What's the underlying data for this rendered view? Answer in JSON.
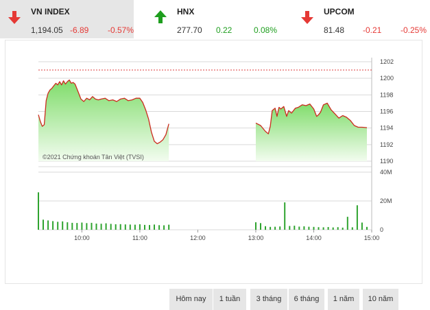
{
  "indices": [
    {
      "name": "VN INDEX",
      "value": "1,194.05",
      "change": "-6.89",
      "percent": "-0.57%",
      "direction": "down"
    },
    {
      "name": "HNX",
      "value": "277.70",
      "change": "0.22",
      "percent": "0.08%",
      "direction": "up"
    },
    {
      "name": "UPCOM",
      "value": "81.48",
      "change": "-0.21",
      "percent": "-0.25%",
      "direction": "down"
    }
  ],
  "colors": {
    "down": "#e53935",
    "up": "#1e9e1e",
    "line": "#cc2a1e",
    "reference": "#e05050",
    "fill_top": "#7fdc6a",
    "fill_bottom": "#f2fcef",
    "volume": "#2ea32e",
    "grid": "#d9d9d9"
  },
  "copyright": "©2021 Chứng khoán Tân Việt (TVSI)",
  "buttons": [
    "Hôm nay",
    "1 tuần",
    "3 tháng",
    "6 tháng",
    "1 năm",
    "10 năm"
  ],
  "chart_data": [
    {
      "type": "line",
      "title": "",
      "x_tick_labels": [
        "10:00",
        "11:00",
        "12:00",
        "13:00",
        "14:00",
        "15:00"
      ],
      "y_tick_labels": [
        "1190",
        "1192",
        "1194",
        "1196",
        "1198",
        "1200",
        "1202"
      ],
      "ylim": [
        1190,
        1202
      ],
      "reference_line": 1201,
      "series": [
        {
          "x": [
            "09:15",
            "09:17",
            "09:19",
            "09:21",
            "09:23",
            "09:25",
            "09:27",
            "09:29",
            "09:31",
            "09:33",
            "09:35",
            "09:37",
            "09:39",
            "09:41",
            "09:43",
            "09:45",
            "09:47",
            "09:49",
            "09:51",
            "09:53",
            "09:56",
            "09:59",
            "10:02",
            "10:05",
            "10:08",
            "10:11",
            "10:14",
            "10:17",
            "10:20",
            "10:24",
            "10:28",
            "10:32",
            "10:36",
            "10:40",
            "10:44",
            "10:48",
            "10:52",
            "10:56",
            "11:00",
            "11:03",
            "11:06",
            "11:09",
            "11:12",
            "11:15",
            "11:18",
            "11:21",
            "11:24",
            "11:27",
            "11:30",
            "13:00",
            "13:05",
            "13:10",
            "13:13",
            "13:15",
            "13:17",
            "13:20",
            "13:22",
            "13:24",
            "13:26",
            "13:29",
            "13:32",
            "13:34",
            "13:37",
            "13:41",
            "13:44",
            "13:48",
            "13:52",
            "13:56",
            "14:00",
            "14:03",
            "14:05",
            "14:07",
            "14:10",
            "14:14",
            "14:18",
            "14:22",
            "14:26",
            "14:30",
            "14:34",
            "14:38",
            "14:42",
            "14:46",
            "14:50",
            "14:55"
          ],
          "values": [
            1195.6,
            1194.8,
            1194.2,
            1194.4,
            1197.3,
            1198.2,
            1198.6,
            1198.8,
            1199.1,
            1199.4,
            1199.2,
            1199.6,
            1199.2,
            1199.7,
            1199.3,
            1199.6,
            1199.8,
            1199.4,
            1199.5,
            1199.3,
            1198.4,
            1197.5,
            1197.2,
            1197.6,
            1197.4,
            1197.8,
            1197.5,
            1197.4,
            1197.5,
            1197.6,
            1197.3,
            1197.4,
            1197.2,
            1197.5,
            1197.6,
            1197.3,
            1197.4,
            1197.6,
            1197.6,
            1197.1,
            1196.2,
            1195.1,
            1193.5,
            1192.4,
            1192.1,
            1192.3,
            1192.6,
            1193.2,
            1194.5,
            1194.6,
            1194.3,
            1193.6,
            1193.3,
            1194.2,
            1196.1,
            1196.4,
            1195.4,
            1196.5,
            1196.3,
            1196.6,
            1195.4,
            1196.1,
            1195.8,
            1196.4,
            1196.5,
            1196.8,
            1196.7,
            1196.9,
            1196.3,
            1195.4,
            1195.6,
            1195.9,
            1196.8,
            1197.0,
            1196.2,
            1195.7,
            1195.2,
            1195.5,
            1195.3,
            1194.9,
            1194.3,
            1194.1,
            1194.1,
            1194.05
          ],
          "note": ""
        }
      ]
    },
    {
      "type": "bar",
      "title": "",
      "x_tick_labels": [
        "10:00",
        "11:00",
        "12:00",
        "13:00",
        "14:00",
        "15:00"
      ],
      "y_tick_labels": [
        "0",
        "20M",
        "40M"
      ],
      "ylim": [
        0,
        40000000
      ],
      "x": [
        "09:15",
        "09:20",
        "09:25",
        "09:30",
        "09:35",
        "09:40",
        "09:45",
        "09:50",
        "09:55",
        "10:00",
        "10:05",
        "10:10",
        "10:15",
        "10:20",
        "10:25",
        "10:30",
        "10:35",
        "10:40",
        "10:45",
        "10:50",
        "10:55",
        "11:00",
        "11:05",
        "11:10",
        "11:15",
        "11:20",
        "11:25",
        "11:30",
        "13:00",
        "13:05",
        "13:10",
        "13:15",
        "13:20",
        "13:25",
        "13:30",
        "13:35",
        "13:40",
        "13:45",
        "13:50",
        "13:55",
        "14:00",
        "14:05",
        "14:10",
        "14:15",
        "14:20",
        "14:25",
        "14:30",
        "14:35",
        "14:40",
        "14:45",
        "14:50",
        "14:55"
      ],
      "values": [
        26000000,
        7000000,
        6500000,
        6000000,
        5500000,
        5800000,
        5200000,
        4800000,
        4700000,
        5000000,
        4600000,
        4800000,
        4300000,
        4200000,
        4500000,
        4100000,
        3800000,
        3900000,
        3700000,
        3600000,
        3500000,
        3800000,
        3400000,
        3300000,
        3600000,
        3200000,
        3100000,
        3500000,
        5200000,
        4600000,
        2500000,
        2000000,
        2100000,
        2300000,
        19000000,
        2600000,
        2800000,
        2200000,
        2400000,
        2100000,
        2000000,
        1800000,
        1700000,
        1900000,
        1600000,
        1800000,
        1500000,
        9000000,
        1700000,
        17000000,
        5000000,
        2000000
      ]
    }
  ]
}
